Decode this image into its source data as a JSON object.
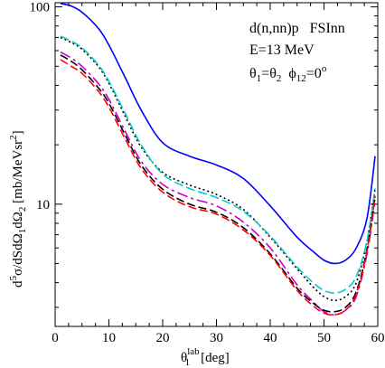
{
  "chart_data": {
    "type": "line",
    "xlabel": "θ",
    "xlabel_sup": "lab",
    "xlabel_sub": "1",
    "xlabel_unit": "[deg]",
    "ylabel_parts": [
      "d",
      "5",
      "σ/dSdΩ",
      "1",
      "dΩ",
      "2",
      " [mb/MeVsr",
      "2",
      "]"
    ],
    "yscale": "log",
    "xlim": [
      0,
      60
    ],
    "ylim": [
      2.4,
      105
    ],
    "x_ticks": [
      0,
      10,
      20,
      30,
      40,
      50,
      60
    ],
    "y_ticks_labeled": [
      10,
      100
    ],
    "y_minor_ticks": [
      3,
      4,
      5,
      6,
      7,
      8,
      9,
      20,
      30,
      40,
      50,
      60,
      70,
      80,
      90
    ],
    "annotations": {
      "reaction": "d(n,nn)p   FSInn",
      "energy": "E=13 MeV",
      "theta_eq": "θ",
      "theta_sub1": "1",
      "theta_eq2": "=θ",
      "theta_sub2": "2",
      "phi": "ϕ",
      "phi_sub": "12",
      "phi_eq": "=0",
      "phi_sup": "o"
    },
    "series": [
      {
        "color": "#0000ff",
        "dash": "",
        "x": [
          1,
          3,
          5,
          8,
          10,
          13,
          16,
          20,
          25,
          30,
          35,
          40,
          45,
          48,
          50,
          52,
          54,
          56,
          58,
          59.5
        ],
        "y": [
          104,
          101,
          94,
          78,
          64,
          44,
          30,
          20.5,
          17.5,
          15.8,
          13.5,
          9.8,
          6.8,
          5.75,
          5.2,
          5.0,
          5.2,
          6.0,
          8.5,
          17.5
        ]
      },
      {
        "color": "#000000",
        "dash": "2,3",
        "x": [
          1,
          3,
          5,
          8,
          10,
          13,
          16,
          20,
          25,
          30,
          35,
          40,
          45,
          48,
          50,
          52,
          54,
          56,
          58,
          59.5
        ],
        "y": [
          70,
          66,
          61,
          50,
          41,
          28,
          19.5,
          14.5,
          12.5,
          11.2,
          9.4,
          6.8,
          4.7,
          3.8,
          3.4,
          3.25,
          3.4,
          4.0,
          6.5,
          12
        ]
      },
      {
        "color": "#00cccc",
        "dash": "10,4",
        "x": [
          1,
          3,
          5,
          8,
          10,
          13,
          16,
          20,
          25,
          30,
          35,
          40,
          45,
          48,
          50,
          52,
          54,
          56,
          58,
          59.5
        ],
        "y": [
          71,
          67,
          62,
          51,
          42,
          29,
          20,
          14.2,
          12.0,
          10.8,
          9.2,
          6.9,
          4.8,
          4.0,
          3.65,
          3.55,
          3.7,
          4.3,
          6.5,
          12
        ]
      },
      {
        "color": "#cc00cc",
        "dash": "12,4,3,4",
        "x": [
          1,
          3,
          5,
          8,
          10,
          13,
          16,
          20,
          25,
          30,
          35,
          40,
          45,
          48,
          50,
          52,
          54,
          56,
          58,
          59.5
        ],
        "y": [
          59,
          55,
          50,
          41,
          34,
          23.5,
          16.5,
          12.6,
          10.8,
          9.8,
          8.1,
          6.0,
          3.9,
          3.2,
          2.85,
          2.75,
          2.9,
          3.4,
          5.6,
          10.5
        ]
      },
      {
        "color": "#000000",
        "dash": "9,4",
        "x": [
          1,
          3,
          5,
          8,
          10,
          13,
          16,
          20,
          25,
          30,
          35,
          40,
          45,
          48,
          50,
          52,
          54,
          56,
          58,
          59.5
        ],
        "y": [
          57,
          53,
          48,
          39,
          32.5,
          22.5,
          15.8,
          11.9,
          10.0,
          9.1,
          7.6,
          5.6,
          3.75,
          3.15,
          2.9,
          2.85,
          3.0,
          3.6,
          5.9,
          11
        ]
      },
      {
        "color": "#ff0000",
        "dash": "9,4",
        "x": [
          1,
          3,
          5,
          8,
          10,
          13,
          16,
          20,
          25,
          30,
          35,
          40,
          45,
          48,
          50,
          52,
          54,
          56,
          58,
          59.5
        ],
        "y": [
          54,
          50,
          46,
          37.5,
          31,
          21.5,
          15.2,
          11.5,
          9.7,
          8.9,
          7.4,
          5.5,
          3.65,
          3.05,
          2.8,
          2.75,
          2.9,
          3.5,
          5.8,
          11
        ]
      }
    ]
  }
}
